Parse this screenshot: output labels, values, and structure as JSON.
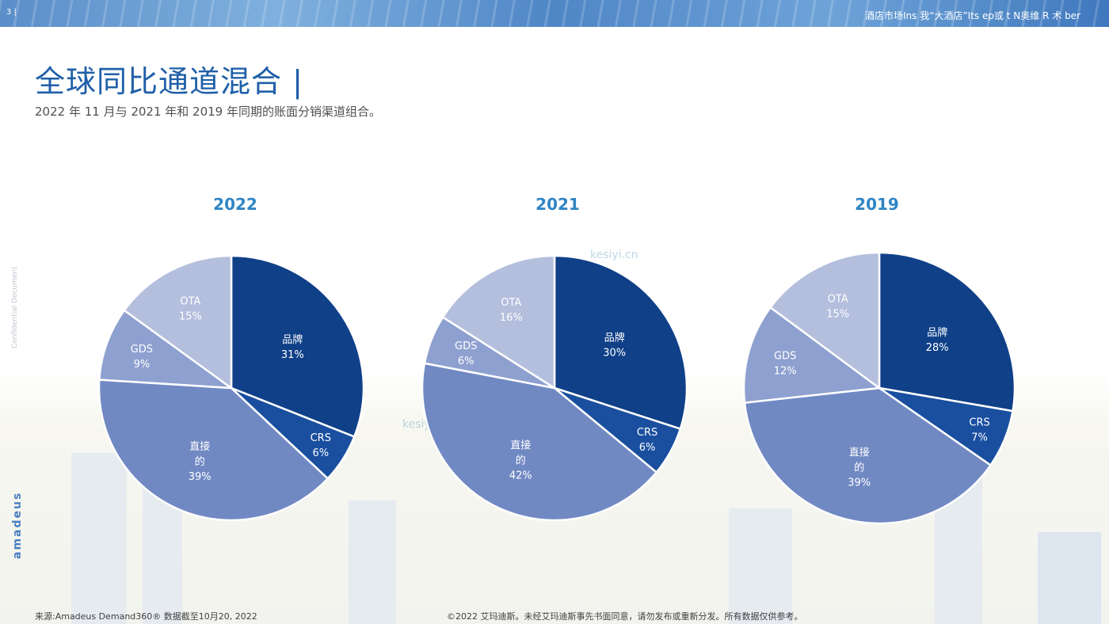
{
  "header": {
    "page_number": "3 |",
    "banner_text": "酒店市场Ins 我“大酒店”Its  ep或 t  N奥维 R 术 ber"
  },
  "title": "全球同比通道混合 |",
  "subtitle": "2022 年 11 月与 2021 年和 2019 年同期的账面分销渠道组合。",
  "side": {
    "confidential": "Confidential Document",
    "logo": "amadeus"
  },
  "watermark": "kesiyi.cn",
  "footer": {
    "source": "来源:Amadeus Demand360® 数据截至10月20, 2022",
    "copyright": "©2022 艾玛迪斯。未经艾玛迪斯事先书面同意，请勿发布或重新分发。所有数据仅供参考。"
  },
  "colors": {
    "brand": "#0f4088",
    "crs": "#1a4fa0",
    "direct": "#7189c3",
    "gds": "#8ea0d0",
    "ota": "#b4bedd",
    "title": "#1f5fa8",
    "chart_title": "#2f85c5"
  },
  "chart_data": [
    {
      "type": "pie",
      "title": "2022",
      "slices": [
        {
          "label": "品牌",
          "value": 31,
          "display": "31%"
        },
        {
          "label": "CRS",
          "value": 6,
          "display": "6%"
        },
        {
          "label": "直接的",
          "value": 39,
          "display": "39%"
        },
        {
          "label": "GDS",
          "value": 9,
          "display": "9%"
        },
        {
          "label": "OTA",
          "value": 15,
          "display": "15%"
        }
      ]
    },
    {
      "type": "pie",
      "title": "2021",
      "slices": [
        {
          "label": "品牌",
          "value": 30,
          "display": "30%"
        },
        {
          "label": "CRS",
          "value": 6,
          "display": "6%"
        },
        {
          "label": "直接的",
          "value": 42,
          "display": "42%"
        },
        {
          "label": "GDS",
          "value": 6,
          "display": "6%"
        },
        {
          "label": "OTA",
          "value": 16,
          "display": "16%"
        }
      ]
    },
    {
      "type": "pie",
      "title": "2019",
      "slices": [
        {
          "label": "品牌",
          "value": 28,
          "display": "28%"
        },
        {
          "label": "CRS",
          "value": 7,
          "display": "7%"
        },
        {
          "label": "直接的",
          "value": 39,
          "display": "39%"
        },
        {
          "label": "GDS",
          "value": 12,
          "display": "12%"
        },
        {
          "label": "OTA",
          "value": 15,
          "display": "15%"
        }
      ]
    }
  ]
}
